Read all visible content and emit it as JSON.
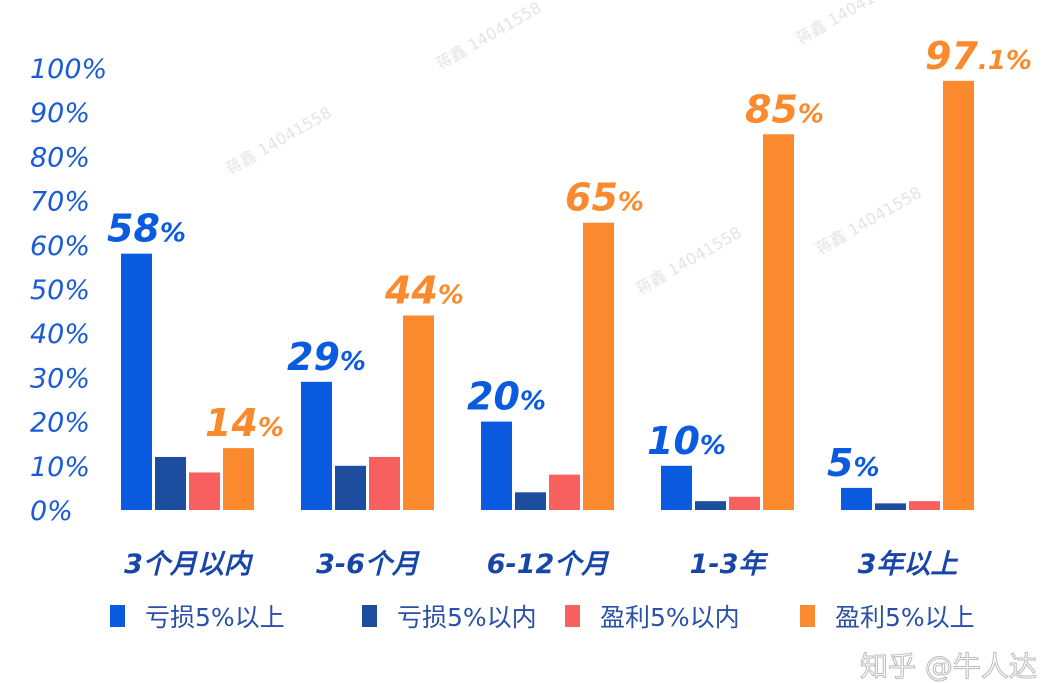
{
  "chart_data": {
    "type": "bar",
    "categories": [
      "3个月以内",
      "3-6个月",
      "6-12个月",
      "1-3年",
      "3年以上"
    ],
    "series": [
      {
        "name": "亏损5%以上",
        "color": "#0a5be0",
        "values": [
          58,
          29,
          20,
          10,
          5
        ],
        "labels": [
          "58%",
          "29%",
          "20%",
          "10%",
          "5%"
        ]
      },
      {
        "name": "亏损5%以内",
        "color": "#1d4d9f",
        "values": [
          12,
          10,
          4,
          2,
          1.5
        ],
        "labels": []
      },
      {
        "name": "盈利5%以内",
        "color": "#f86060",
        "values": [
          8.5,
          12,
          8,
          3,
          2
        ],
        "labels": []
      },
      {
        "name": "盈利5%以上",
        "color": "#fb8a2e",
        "values": [
          14,
          44,
          65,
          85,
          97.1
        ],
        "labels": [
          "14%",
          "44%",
          "65%",
          "85%",
          "97.1%"
        ]
      }
    ],
    "yticks": [
      "0%",
      "10%",
      "20%",
      "30%",
      "40%",
      "50%",
      "60%",
      "70%",
      "80%",
      "90%",
      "100%"
    ],
    "ylim": [
      0,
      100
    ],
    "grid": false,
    "legend": "bottom",
    "title": "",
    "xlabel": "",
    "ylabel": ""
  },
  "watermark": {
    "brand": "知乎 @牛人达",
    "faint": "蒋鑫 14041558"
  }
}
